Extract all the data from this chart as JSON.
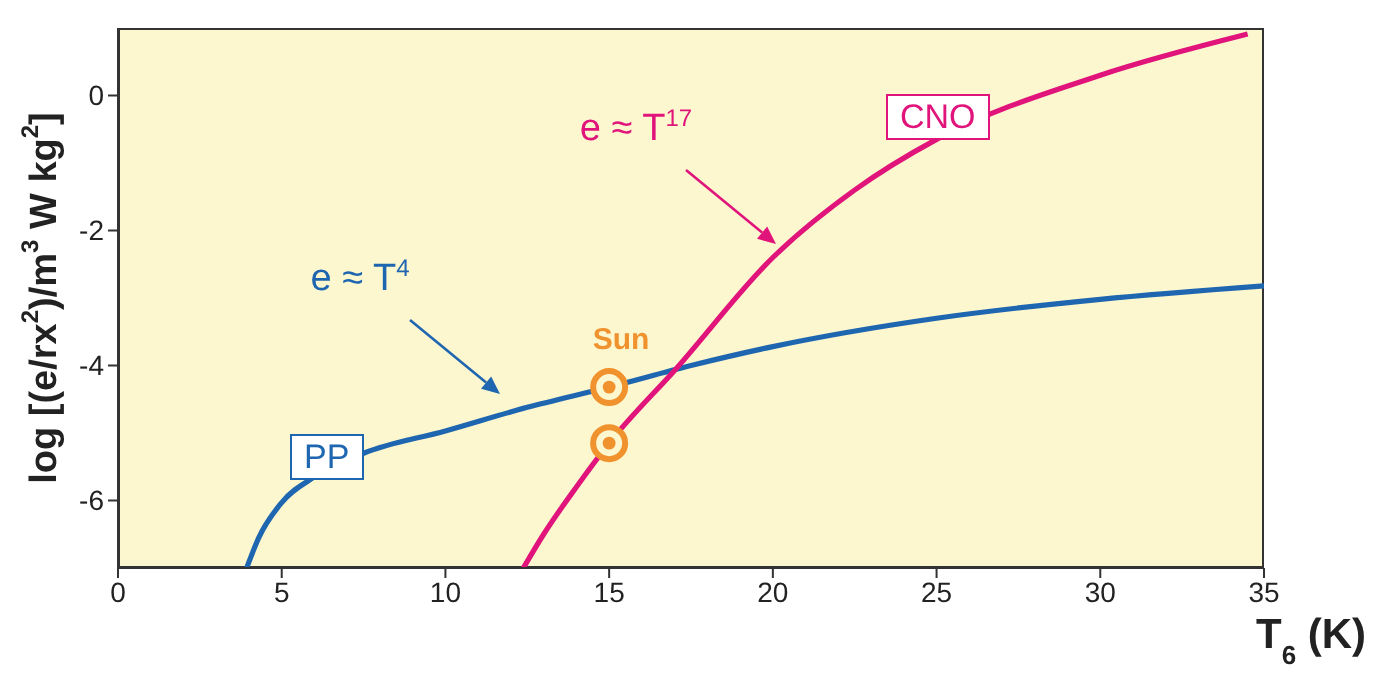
{
  "chart_data": {
    "type": "line",
    "xlabel": "T$_{6}$ (K)",
    "ylabel": "log [(e/rx$^{2}$)/m$^{3}$ W kg$^{2}$]",
    "xlim": [
      0,
      35
    ],
    "xticks": [
      0,
      5,
      10,
      15,
      20,
      25,
      30,
      35
    ],
    "ylim": [
      -7,
      1
    ],
    "yticks": [
      -6,
      -4,
      -2,
      0
    ],
    "marker": "none",
    "line_style": "solid",
    "annotations": [
      "e ≈ T$^{4}$",
      "e ≈ T$^{17}$"
    ],
    "series": [
      {
        "name": "PP",
        "color": "#1f66b0",
        "x": [
          3.93,
          4.3,
          5,
          6,
          7.5,
          10,
          12.5,
          15,
          17.5,
          20,
          25,
          30,
          35
        ],
        "values": [
          -7,
          -6.55,
          -6.03,
          -5.65,
          -5.3,
          -4.97,
          -4.62,
          -4.32,
          -4.0,
          -3.72,
          -3.3,
          -3.02,
          -2.82
        ]
      },
      {
        "name": "CNO",
        "color": "#e0147a",
        "x": [
          12.38,
          13,
          14,
          15,
          17.06,
          20,
          22.5,
          25,
          30,
          34.5
        ],
        "values": [
          -7,
          -6.5,
          -5.8,
          -5.15,
          -4.04,
          -2.4,
          -1.4,
          -0.65,
          0.3,
          0.91
        ]
      },
      {
        "name": "Sun",
        "type": "scatter",
        "marker": "circle",
        "color": "#f0922e",
        "x": [
          15,
          15
        ],
        "values": [
          -4.32,
          -5.15
        ]
      }
    ]
  }
}
